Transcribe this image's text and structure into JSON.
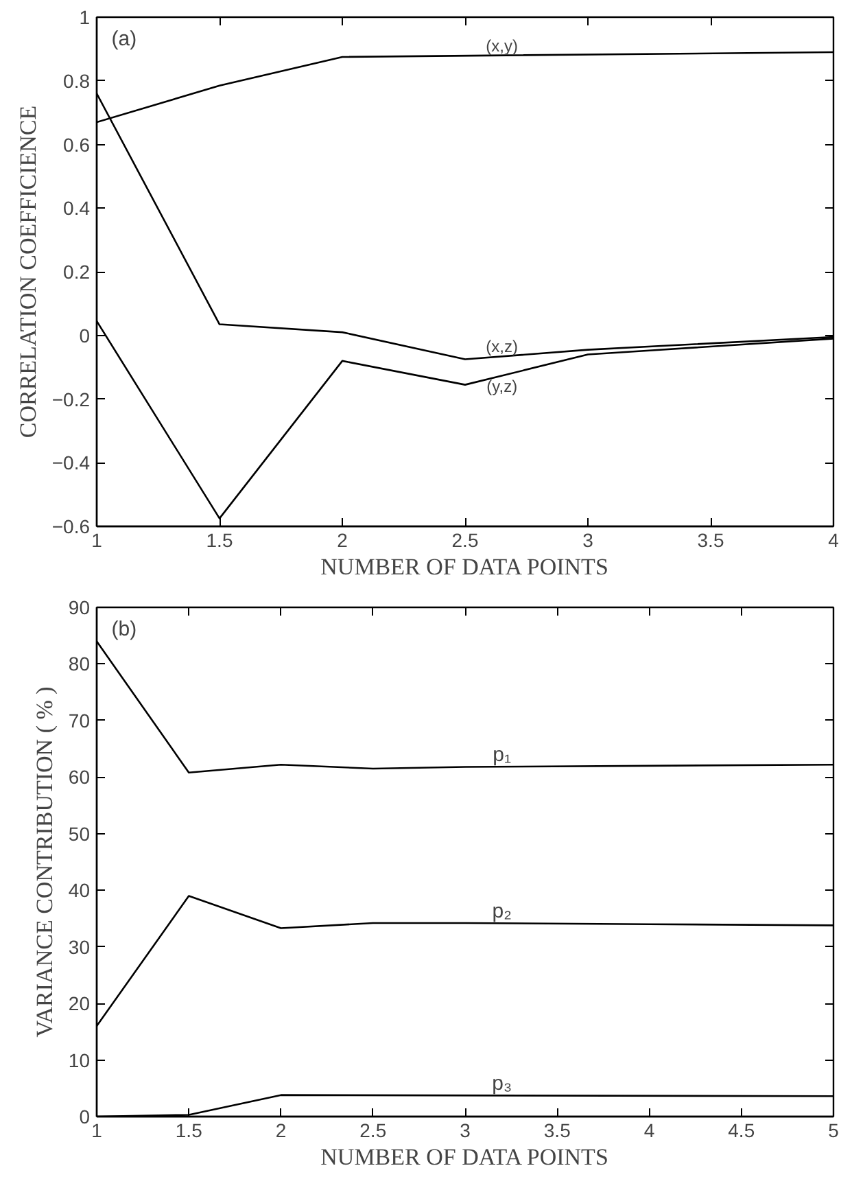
{
  "chart_data": [
    {
      "type": "line",
      "xlabel": "NUMBER OF DATA POINTS",
      "ylabel": "CORRELATION COEFFICIENCE",
      "xlim": [
        1,
        4
      ],
      "ylim": [
        -0.6,
        1
      ],
      "xticks": [
        1,
        1.5,
        2,
        2.5,
        3,
        3.5,
        4
      ],
      "yticks": [
        -0.6,
        -0.4,
        -0.2,
        0,
        0.2,
        0.4,
        0.6,
        0.8,
        1
      ],
      "grid": false,
      "legend": false,
      "marker": "none",
      "line_style": "solid",
      "series": [
        {
          "name": "(x,y)",
          "color": "#000000",
          "x": [
            1,
            1.5,
            2,
            4
          ],
          "values": [
            0.67,
            0.785,
            0.875,
            0.89
          ]
        },
        {
          "name": "(x,z)",
          "color": "#000000",
          "x": [
            1,
            1.5,
            2,
            2.5,
            3,
            4
          ],
          "values": [
            0.76,
            0.035,
            0.01,
            -0.075,
            -0.045,
            -0.005
          ]
        },
        {
          "name": "(y,z)",
          "color": "#000000",
          "x": [
            1,
            1.5,
            2,
            2.5,
            3,
            4
          ],
          "values": [
            0.045,
            -0.575,
            -0.08,
            -0.155,
            -0.06,
            -0.01
          ]
        }
      ],
      "annotations": [
        "(a)"
      ]
    },
    {
      "type": "line",
      "xlabel": "NUMBER OF DATA POINTS",
      "ylabel": "VARIANCE CONTRIBUTION ( % )",
      "xlim": [
        1,
        5
      ],
      "ylim": [
        0,
        90
      ],
      "xticks": [
        1,
        1.5,
        2,
        2.5,
        3,
        3.5,
        4,
        4.5,
        5
      ],
      "yticks": [
        0,
        10,
        20,
        30,
        40,
        50,
        60,
        70,
        80,
        90
      ],
      "grid": false,
      "legend": false,
      "marker": "none",
      "line_style": "solid",
      "series": [
        {
          "name": "p₁",
          "color": "#000000",
          "x": [
            1,
            1.5,
            2,
            2.5,
            3,
            4,
            5
          ],
          "values": [
            84,
            60.8,
            62.2,
            61.5,
            61.8,
            62,
            62.2
          ]
        },
        {
          "name": "p₂",
          "color": "#000000",
          "x": [
            1,
            1.5,
            2,
            2.5,
            3,
            4,
            5
          ],
          "values": [
            16,
            39,
            33.3,
            34.2,
            34.2,
            34,
            33.8
          ]
        },
        {
          "name": "p₃",
          "color": "#000000",
          "x": [
            1,
            1.5,
            2,
            5
          ],
          "values": [
            0,
            0.3,
            3.8,
            3.6
          ]
        }
      ],
      "annotations": [
        "(b)"
      ]
    }
  ]
}
